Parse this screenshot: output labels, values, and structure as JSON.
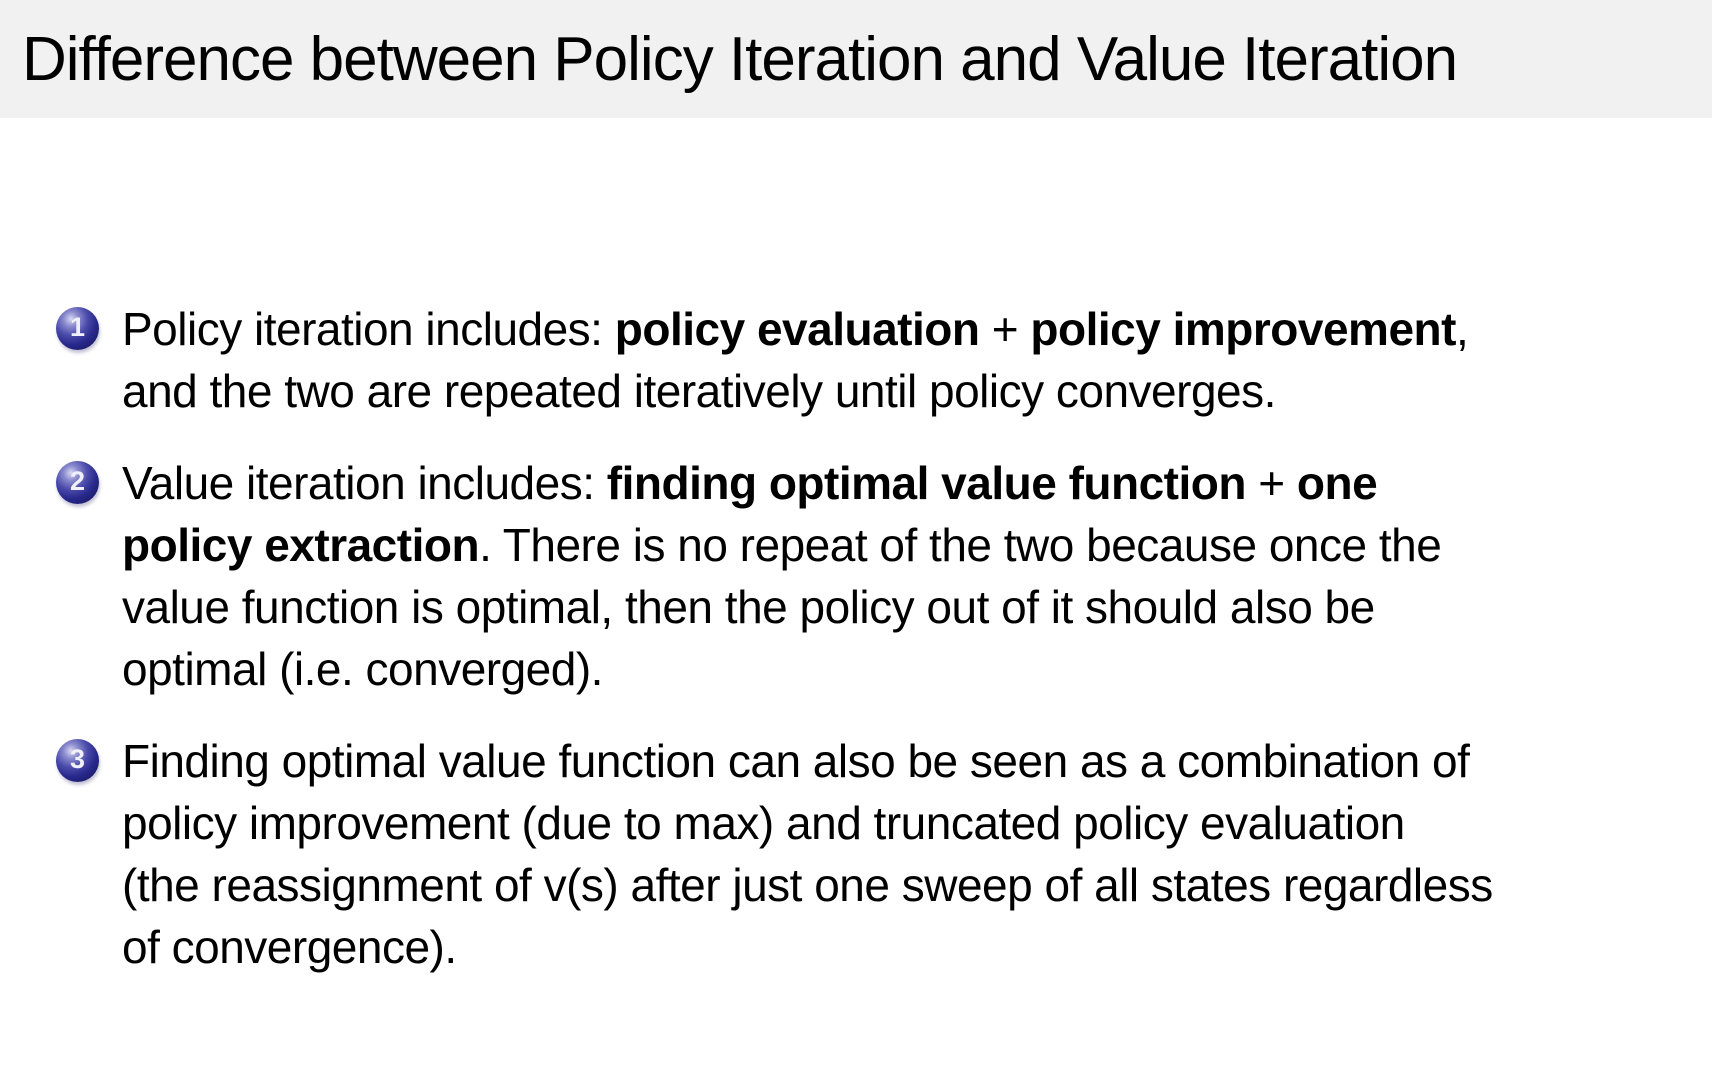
{
  "title": "Difference between Policy Iteration and Value Iteration",
  "colors": {
    "header_background": "#f1f1f1",
    "body_background": "#ffffff",
    "text": "#000000",
    "enumerate_ball": "#28288c",
    "enumerate_ball_number": "#f0f0fa"
  },
  "slide": {
    "items": [
      {
        "number": "1",
        "lines": [
          [
            {
              "t": "Policy iteration includes: "
            },
            {
              "t": "policy evaluation",
              "b": true
            },
            {
              "t": " + "
            },
            {
              "t": "policy improvement",
              "b": true
            },
            {
              "t": ","
            }
          ],
          [
            {
              "t": "and the two are repeated iteratively until policy converges."
            }
          ]
        ]
      },
      {
        "number": "2",
        "lines": [
          [
            {
              "t": "Value iteration includes: "
            },
            {
              "t": "finding optimal value function",
              "b": true
            },
            {
              "t": " + "
            },
            {
              "t": "one",
              "b": true
            }
          ],
          [
            {
              "t": "policy extraction",
              "b": true
            },
            {
              "t": ". There is no repeat of the two because once the"
            }
          ],
          [
            {
              "t": "value function is optimal, then the policy out of it should also be"
            }
          ],
          [
            {
              "t": "optimal (i.e. converged)."
            }
          ]
        ]
      },
      {
        "number": "3",
        "lines": [
          [
            {
              "t": "Finding optimal value function can also be seen as a combination of"
            }
          ],
          [
            {
              "t": "policy improvement (due to max) and truncated policy evaluation"
            }
          ],
          [
            {
              "t": "(the reassignment of v(s) after just one sweep of all states regardless"
            }
          ],
          [
            {
              "t": "of convergence)."
            }
          ]
        ]
      }
    ]
  }
}
